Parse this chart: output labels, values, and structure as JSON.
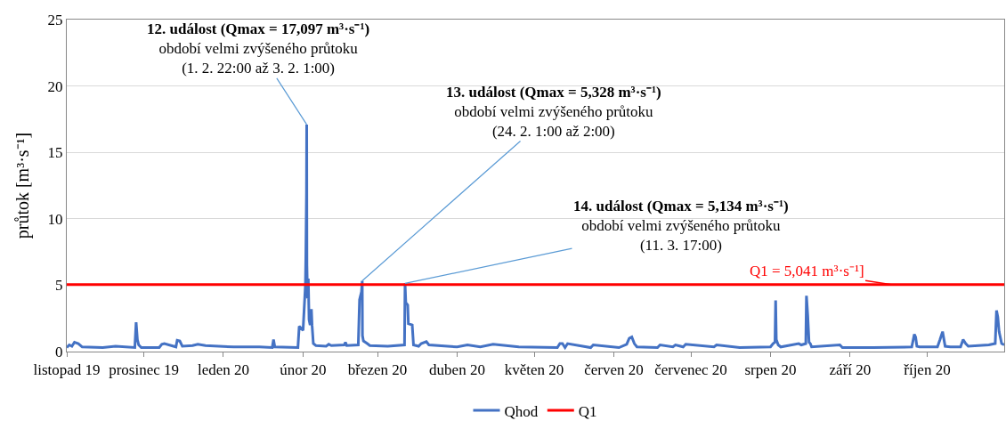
{
  "chart_data": {
    "type": "line",
    "ylabel": "průtok [m³·s⁻¹]",
    "xlim": [
      "2019-11-01",
      "2020-10-31"
    ],
    "xticks": [
      {
        "value": "2019-11-01",
        "label": "listopad 19"
      },
      {
        "value": "2019-12-01",
        "label": "prosinec 19"
      },
      {
        "value": "2020-01-01",
        "label": "leden 20"
      },
      {
        "value": "2020-02-01",
        "label": "únor 20"
      },
      {
        "value": "2020-03-01",
        "label": "březen 20"
      },
      {
        "value": "2020-04-01",
        "label": "duben 20"
      },
      {
        "value": "2020-05-01",
        "label": "květen 20"
      },
      {
        "value": "2020-06-01",
        "label": "červen 20"
      },
      {
        "value": "2020-07-01",
        "label": "červenec 20"
      },
      {
        "value": "2020-08-01",
        "label": "srpen 20"
      },
      {
        "value": "2020-09-01",
        "label": "září 20"
      },
      {
        "value": "2020-10-01",
        "label": "říjen 20"
      }
    ],
    "ylim": [
      0,
      25
    ],
    "yticks": [
      0,
      5,
      10,
      15,
      20,
      25
    ],
    "grid": "y",
    "legend": "bottom",
    "marker": "none",
    "line_style": "solid",
    "series": [
      {
        "name": "Qhod",
        "color": "#4472c4",
        "x": [
          "2019-11-01T00:00",
          "2019-11-02T00:00",
          "2019-11-03T00:00",
          "2019-11-04T00:00",
          "2019-11-05T12:00",
          "2019-11-07T00:00",
          "2019-11-15T00:00",
          "2019-11-20T00:00",
          "2019-11-27T12:00",
          "2019-11-28T00:00",
          "2019-11-28T12:00",
          "2019-11-29T00:00",
          "2019-11-30T00:00",
          "2019-12-07T00:00",
          "2019-12-08T00:00",
          "2019-12-09T00:00",
          "2019-12-13T12:00",
          "2019-12-14T00:00",
          "2019-12-15T00:00",
          "2019-12-16T00:00",
          "2019-12-20T00:00",
          "2019-12-22T00:00",
          "2019-12-25T00:00",
          "2020-01-05T00:00",
          "2020-01-15T00:00",
          "2020-01-20T00:00",
          "2020-01-20T12:00",
          "2020-01-21T00:00",
          "2020-01-30T00:00",
          "2020-01-30T12:00",
          "2020-02-01T00:00",
          "2020-02-01T22:00",
          "2020-02-02T02:00",
          "2020-02-02T08:00",
          "2020-02-02T10:00",
          "2020-02-02T12:00",
          "2020-02-02T18:00",
          "2020-02-03T01:00",
          "2020-02-03T08:00",
          "2020-02-03T18:00",
          "2020-02-04T06:00",
          "2020-02-04T12:00",
          "2020-02-05T00:00",
          "2020-02-06T00:00",
          "2020-02-10T00:00",
          "2020-02-11T00:00",
          "2020-02-12T00:00",
          "2020-02-17T00:00",
          "2020-02-17T12:00",
          "2020-02-18T00:00",
          "2020-02-22T12:00",
          "2020-02-23T00:00",
          "2020-02-23T18:00",
          "2020-02-24T01:00",
          "2020-02-24T03:00",
          "2020-02-24T12:00",
          "2020-02-26T00:00",
          "2020-02-27T00:00",
          "2020-03-05T00:00",
          "2020-03-11T12:00",
          "2020-03-11T17:00",
          "2020-03-12T00:00",
          "2020-03-12T18:00",
          "2020-03-13T00:00",
          "2020-03-14T12:00",
          "2020-03-15T00:00",
          "2020-03-17T00:00",
          "2020-03-18T00:00",
          "2020-03-20T00:00",
          "2020-03-21T00:00",
          "2020-04-01T00:00",
          "2020-04-05T00:00",
          "2020-04-10T00:00",
          "2020-04-15T00:00",
          "2020-04-25T00:00",
          "2020-05-10T00:00",
          "2020-05-11T00:00",
          "2020-05-12T00:00",
          "2020-05-13T00:00",
          "2020-05-14T00:00",
          "2020-05-23T00:00",
          "2020-05-24T00:00",
          "2020-06-03T00:00",
          "2020-06-06T00:00",
          "2020-06-07T00:00",
          "2020-06-08T00:00",
          "2020-06-09T00:00",
          "2020-06-10T00:00",
          "2020-06-18T00:00",
          "2020-06-19T00:00",
          "2020-06-24T00:00",
          "2020-06-25T00:00",
          "2020-06-28T00:00",
          "2020-06-29T00:00",
          "2020-07-10T00:00",
          "2020-07-11T00:00",
          "2020-07-20T00:00",
          "2020-08-01T00:00",
          "2020-08-02T00:00",
          "2020-08-02T18:00",
          "2020-08-03T00:00",
          "2020-08-03T06:00",
          "2020-08-04T00:00",
          "2020-08-05T00:00",
          "2020-08-12T00:00",
          "2020-08-13T00:00",
          "2020-08-14T18:00",
          "2020-08-15T00:00",
          "2020-08-15T12:00",
          "2020-08-16T00:00",
          "2020-08-16T12:00",
          "2020-08-17T00:00",
          "2020-08-28T00:00",
          "2020-08-29T00:00",
          "2020-09-10T00:00",
          "2020-09-25T00:00",
          "2020-09-26T00:00",
          "2020-09-26T12:00",
          "2020-09-27T00:00",
          "2020-09-28T00:00",
          "2020-10-05T00:00",
          "2020-10-06T00:00",
          "2020-10-07T00:00",
          "2020-10-08T00:00",
          "2020-10-10T00:00",
          "2020-10-14T00:00",
          "2020-10-15T00:00",
          "2020-10-16T00:00",
          "2020-10-17T00:00",
          "2020-10-25T00:00",
          "2020-10-27T12:00",
          "2020-10-28T00:00",
          "2020-10-28T12:00",
          "2020-10-29T00:00",
          "2020-10-30T00:00",
          "2020-10-31T00:00"
        ],
        "values": [
          0.3,
          0.5,
          0.4,
          0.7,
          0.6,
          0.35,
          0.3,
          0.4,
          0.3,
          2.2,
          0.9,
          0.5,
          0.3,
          0.3,
          0.55,
          0.6,
          0.35,
          0.85,
          0.8,
          0.4,
          0.45,
          0.55,
          0.45,
          0.35,
          0.35,
          0.3,
          0.9,
          0.35,
          0.3,
          1.9,
          1.6,
          5.0,
          7.2,
          12.0,
          17.097,
          6.5,
          4.0,
          5.5,
          2.4,
          2.0,
          3.2,
          2.0,
          0.6,
          0.45,
          0.4,
          0.55,
          0.45,
          0.5,
          0.7,
          0.45,
          0.5,
          3.9,
          4.5,
          5.328,
          1.2,
          0.8,
          0.6,
          0.45,
          0.4,
          0.5,
          5.134,
          3.7,
          3.5,
          2.1,
          2.0,
          0.5,
          0.4,
          0.6,
          0.75,
          0.5,
          0.35,
          0.5,
          0.35,
          0.55,
          0.35,
          0.3,
          0.6,
          0.6,
          0.3,
          0.6,
          0.3,
          0.5,
          0.3,
          0.55,
          1.0,
          1.1,
          0.6,
          0.35,
          0.3,
          0.5,
          0.35,
          0.5,
          0.35,
          0.55,
          0.35,
          0.5,
          0.3,
          0.35,
          0.6,
          0.7,
          3.85,
          0.9,
          0.5,
          0.35,
          0.6,
          0.5,
          0.6,
          4.2,
          2.7,
          0.7,
          0.6,
          0.35,
          0.5,
          0.3,
          0.3,
          0.35,
          1.3,
          1.1,
          0.4,
          0.35,
          0.35,
          0.9,
          1.5,
          0.4,
          0.35,
          0.35,
          0.9,
          0.6,
          0.4,
          0.5,
          0.6,
          3.1,
          2.6,
          1.5,
          0.6,
          0.5
        ]
      },
      {
        "name": "Q1",
        "color": "#ff0000",
        "x": [
          "2019-11-01T00:00",
          "2020-10-31T00:00"
        ],
        "values": [
          5.041,
          5.041
        ]
      }
    ],
    "annotations": [
      {
        "text": "12. událost (Qmax = 17,097 m³·s⁻¹)\nobdobí velmi zvýšeného průtoku\n(1. 2. 22:00 až 3. 2. 1:00)",
        "x": "2020-02-02T10:00",
        "y": 17.097
      },
      {
        "text": "13. událost (Qmax = 5,328 m³·s⁻¹)\nobdobí velmi zvýšeného průtoku\n(24. 2. 1:00 až 2:00)",
        "x": "2020-02-24T01:00",
        "y": 5.328
      },
      {
        "text": "14. událost (Qmax = 5,134 m³·s⁻¹)\nobdobí velmi zvýšeného průtoku\n(11. 3. 17:00)",
        "x": "2020-03-11T17:00",
        "y": 5.134
      },
      {
        "text": "Q1 = 5,041 m³·s⁻¹]",
        "x": "2020-09-17",
        "y": 5.041
      }
    ]
  }
}
